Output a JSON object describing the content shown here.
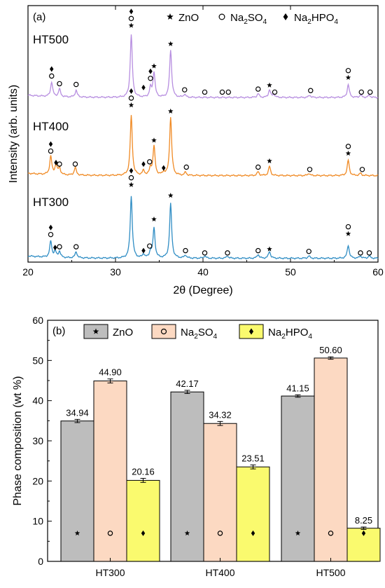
{
  "chart_data": [
    {
      "type": "line",
      "panel_label": "(a)",
      "xlabel": "2θ (Degree)",
      "ylabel": "Intensity (arb. units)",
      "xlim": [
        20,
        60
      ],
      "x_ticks": [
        "20",
        "30",
        "40",
        "50",
        "60"
      ],
      "legend": {
        "placement": "top-right",
        "entries": [
          {
            "marker": "star",
            "label": "ZnO"
          },
          {
            "marker": "circle",
            "label": "Na2SO4"
          },
          {
            "marker": "diamond",
            "label": "Na2HPO4"
          }
        ]
      },
      "series": [
        {
          "name": "HT500",
          "color": "#b78ee0",
          "baseline": 2.15,
          "peaks": [
            [
              22.7,
              0.19
            ],
            [
              23.6,
              0.1
            ],
            [
              25.5,
              0.09
            ],
            [
              31.8,
              0.82
            ],
            [
              34.0,
              0.12
            ],
            [
              34.4,
              0.33
            ],
            [
              36.3,
              0.62
            ],
            [
              37.9,
              0.04
            ],
            [
              46.3,
              0.05
            ],
            [
              47.6,
              0.1
            ],
            [
              48.1,
              0.04
            ],
            [
              52.2,
              0.03
            ],
            [
              56.6,
              0.17
            ],
            [
              58.0,
              0.03
            ],
            [
              59.0,
              0.03
            ]
          ]
        },
        {
          "name": "HT400",
          "color": "#f08a24",
          "baseline": 1.13,
          "peaks": [
            [
              22.6,
              0.24
            ],
            [
              23.2,
              0.13
            ],
            [
              23.6,
              0.09
            ],
            [
              25.4,
              0.1
            ],
            [
              31.8,
              0.78
            ],
            [
              33.2,
              0.06
            ],
            [
              34.0,
              0.09
            ],
            [
              34.4,
              0.38
            ],
            [
              35.5,
              0.04
            ],
            [
              36.3,
              0.76
            ],
            [
              38.0,
              0.04
            ],
            [
              46.3,
              0.05
            ],
            [
              47.6,
              0.12
            ],
            [
              52.1,
              0.03
            ],
            [
              56.6,
              0.2
            ],
            [
              58.0,
              0.03
            ]
          ]
        },
        {
          "name": "HT300",
          "color": "#2f8dc4",
          "baseline": 0.05,
          "peaks": [
            [
              22.6,
              0.21
            ],
            [
              23.1,
              0.08
            ],
            [
              23.6,
              0.08
            ],
            [
              25.5,
              0.08
            ],
            [
              31.8,
              0.81
            ],
            [
              33.2,
              0.05
            ],
            [
              34.0,
              0.08
            ],
            [
              34.4,
              0.39
            ],
            [
              36.3,
              0.71
            ],
            [
              38.0,
              0.04
            ],
            [
              40.2,
              0.03
            ],
            [
              42.8,
              0.03
            ],
            [
              46.3,
              0.05
            ],
            [
              47.6,
              0.09
            ],
            [
              52.1,
              0.03
            ],
            [
              56.6,
              0.17
            ],
            [
              58.0,
              0.03
            ],
            [
              59.0,
              0.03
            ]
          ]
        }
      ],
      "markers": [
        {
          "series": "HT500",
          "x": 31.8,
          "y": 3.09,
          "symbols": [
            "star",
            "circle",
            "diamond"
          ]
        },
        {
          "series": "HT500",
          "x": 22.7,
          "y": 2.43,
          "symbols": [
            "circle",
            "diamond"
          ]
        },
        {
          "series": "HT500",
          "x": 23.6,
          "y": 2.33,
          "symbols": [
            "circle"
          ]
        },
        {
          "series": "HT500",
          "x": 25.5,
          "y": 2.32,
          "symbols": [
            "circle"
          ]
        },
        {
          "series": "HT500",
          "x": 34.0,
          "y": 2.4,
          "symbols": [
            "circle",
            "diamond"
          ]
        },
        {
          "series": "HT500",
          "x": 33.2,
          "y": 2.28,
          "symbols": [
            "diamond"
          ]
        },
        {
          "series": "HT500",
          "x": 34.4,
          "y": 2.56,
          "symbols": [
            "star"
          ]
        },
        {
          "series": "HT500",
          "x": 36.3,
          "y": 2.85,
          "symbols": [
            "star"
          ]
        },
        {
          "series": "HT500",
          "x": 37.9,
          "y": 2.25,
          "symbols": [
            "circle"
          ]
        },
        {
          "series": "HT500",
          "x": 40.2,
          "y": 2.22,
          "symbols": [
            "circle"
          ]
        },
        {
          "series": "HT500",
          "x": 42.2,
          "y": 2.22,
          "symbols": [
            "circle"
          ]
        },
        {
          "series": "HT500",
          "x": 42.9,
          "y": 2.22,
          "symbols": [
            "circle"
          ]
        },
        {
          "series": "HT500",
          "x": 46.3,
          "y": 2.26,
          "symbols": [
            "circle"
          ]
        },
        {
          "series": "HT500",
          "x": 47.6,
          "y": 2.31,
          "symbols": [
            "star"
          ]
        },
        {
          "series": "HT500",
          "x": 48.2,
          "y": 2.22,
          "symbols": [
            "circle"
          ]
        },
        {
          "series": "HT500",
          "x": 52.3,
          "y": 2.24,
          "symbols": [
            "circle"
          ]
        },
        {
          "series": "HT500",
          "x": 56.6,
          "y": 2.41,
          "symbols": [
            "star",
            "circle"
          ]
        },
        {
          "series": "HT500",
          "x": 58.1,
          "y": 2.22,
          "symbols": [
            "circle"
          ]
        },
        {
          "series": "HT500",
          "x": 59.1,
          "y": 2.22,
          "symbols": [
            "circle"
          ]
        },
        {
          "series": "HT400",
          "x": 31.8,
          "y": 2.05,
          "symbols": [
            "star",
            "circle",
            "diamond"
          ]
        },
        {
          "series": "HT400",
          "x": 22.6,
          "y": 1.45,
          "symbols": [
            "circle",
            "diamond"
          ]
        },
        {
          "series": "HT400",
          "x": 23.2,
          "y": 1.3,
          "symbols": [
            "diamond"
          ]
        },
        {
          "series": "HT400",
          "x": 23.6,
          "y": 1.28,
          "symbols": [
            "circle"
          ]
        },
        {
          "series": "HT400",
          "x": 25.4,
          "y": 1.28,
          "symbols": [
            "circle"
          ]
        },
        {
          "series": "HT400",
          "x": 33.2,
          "y": 1.28,
          "symbols": [
            "diamond"
          ]
        },
        {
          "series": "HT400",
          "x": 33.9,
          "y": 1.31,
          "symbols": [
            "circle"
          ]
        },
        {
          "series": "HT400",
          "x": 34.4,
          "y": 1.59,
          "symbols": [
            "star"
          ]
        },
        {
          "series": "HT400",
          "x": 35.5,
          "y": 1.23,
          "symbols": [
            "diamond"
          ]
        },
        {
          "series": "HT400",
          "x": 36.3,
          "y": 1.97,
          "symbols": [
            "star"
          ]
        },
        {
          "series": "HT400",
          "x": 38.1,
          "y": 1.24,
          "symbols": [
            "circle"
          ]
        },
        {
          "series": "HT400",
          "x": 46.3,
          "y": 1.24,
          "symbols": [
            "circle"
          ]
        },
        {
          "series": "HT400",
          "x": 47.6,
          "y": 1.32,
          "symbols": [
            "star"
          ]
        },
        {
          "series": "HT400",
          "x": 52.2,
          "y": 1.21,
          "symbols": [
            "circle"
          ]
        },
        {
          "series": "HT400",
          "x": 56.6,
          "y": 1.42,
          "symbols": [
            "star",
            "circle"
          ]
        },
        {
          "series": "HT400",
          "x": 58.2,
          "y": 1.21,
          "symbols": [
            "circle"
          ]
        },
        {
          "series": "HT300",
          "x": 31.8,
          "y": 1.01,
          "symbols": [
            "star",
            "circle",
            "diamond"
          ]
        },
        {
          "series": "HT300",
          "x": 22.6,
          "y": 0.36,
          "symbols": [
            "circle",
            "diamond"
          ]
        },
        {
          "series": "HT300",
          "x": 23.1,
          "y": 0.19,
          "symbols": [
            "diamond"
          ]
        },
        {
          "series": "HT300",
          "x": 23.6,
          "y": 0.2,
          "symbols": [
            "circle"
          ]
        },
        {
          "series": "HT300",
          "x": 25.5,
          "y": 0.2,
          "symbols": [
            "circle"
          ]
        },
        {
          "series": "HT300",
          "x": 33.2,
          "y": 0.15,
          "symbols": [
            "diamond"
          ]
        },
        {
          "series": "HT300",
          "x": 33.9,
          "y": 0.21,
          "symbols": [
            "circle"
          ]
        },
        {
          "series": "HT300",
          "x": 34.4,
          "y": 0.56,
          "symbols": [
            "star"
          ]
        },
        {
          "series": "HT300",
          "x": 36.3,
          "y": 0.87,
          "symbols": [
            "star"
          ]
        },
        {
          "series": "HT300",
          "x": 38.0,
          "y": 0.15,
          "symbols": [
            "circle"
          ]
        },
        {
          "series": "HT300",
          "x": 40.2,
          "y": 0.12,
          "symbols": [
            "circle"
          ]
        },
        {
          "series": "HT300",
          "x": 42.8,
          "y": 0.12,
          "symbols": [
            "circle"
          ]
        },
        {
          "series": "HT300",
          "x": 46.3,
          "y": 0.15,
          "symbols": [
            "circle"
          ]
        },
        {
          "series": "HT300",
          "x": 47.6,
          "y": 0.17,
          "symbols": [
            "star"
          ]
        },
        {
          "series": "HT300",
          "x": 52.1,
          "y": 0.14,
          "symbols": [
            "circle"
          ]
        },
        {
          "series": "HT300",
          "x": 56.6,
          "y": 0.37,
          "symbols": [
            "star",
            "circle"
          ]
        },
        {
          "series": "HT300",
          "x": 58.0,
          "y": 0.12,
          "symbols": [
            "circle"
          ]
        },
        {
          "series": "HT300",
          "x": 59.0,
          "y": 0.12,
          "symbols": [
            "circle"
          ]
        }
      ]
    },
    {
      "type": "bar",
      "panel_label": "(b)",
      "categories": [
        "HT300",
        "HT400",
        "HT500"
      ],
      "ylabel": "Phase composition (wt %)",
      "ylim": [
        0,
        60
      ],
      "y_ticks": [
        "0",
        "10",
        "20",
        "30",
        "40",
        "50",
        "60"
      ],
      "grid": false,
      "legend": {
        "placement": "top"
      },
      "series": [
        {
          "name": "ZnO",
          "marker": "star",
          "color": "#bdbdbd",
          "values": [
            34.94,
            42.17,
            41.15
          ],
          "labels": [
            "34.94",
            "42.17",
            "41.15"
          ],
          "errors": [
            0.4,
            0.4,
            0.3
          ]
        },
        {
          "name": "Na2SO4",
          "marker": "circle",
          "color": "#fcd9c2",
          "values": [
            44.9,
            34.32,
            50.6
          ],
          "labels": [
            "44.90",
            "34.32",
            "50.60"
          ],
          "errors": [
            0.5,
            0.5,
            0.3
          ]
        },
        {
          "name": "Na2HPO4",
          "marker": "diamond",
          "color": "#fafa6e",
          "values": [
            20.16,
            23.51,
            8.25
          ],
          "labels": [
            "20.16",
            "23.51",
            "8.25"
          ],
          "errors": [
            0.5,
            0.5,
            0.3
          ]
        }
      ]
    }
  ]
}
